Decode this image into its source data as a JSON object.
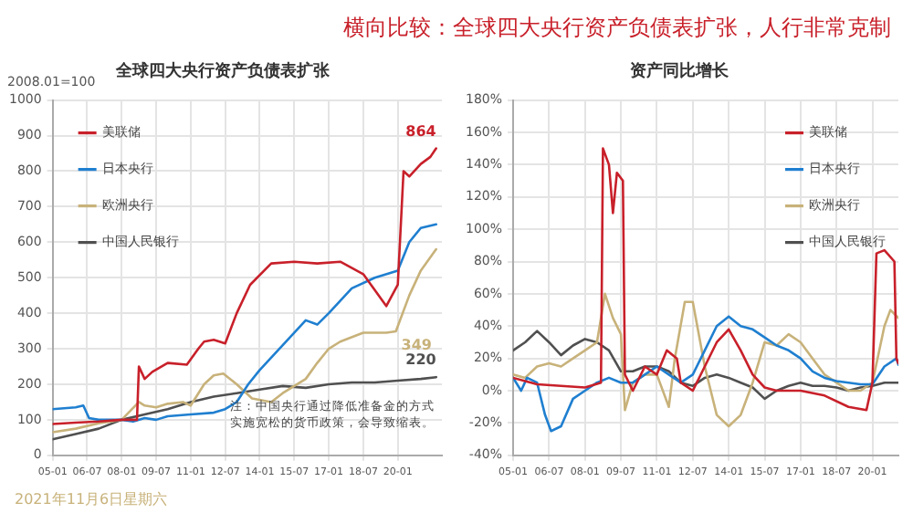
{
  "chart_data": [
    {
      "type": "line",
      "title": "全球四大央行资产负债表扩张",
      "subtitle": "横向比较：全球四大央行资产负债表扩张，人行非常克制",
      "ylabel": "2008.01=100",
      "xlim": [
        "2005-01",
        "2021-12"
      ],
      "xticks": [
        {
          "value": "2005-01",
          "label": "05-01"
        },
        {
          "value": "2006-07",
          "label": "06-07"
        },
        {
          "value": "2008-01",
          "label": "08-01"
        },
        {
          "value": "2009-07",
          "label": "09-07"
        },
        {
          "value": "2011-01",
          "label": "11-01"
        },
        {
          "value": "2012-07",
          "label": "12-07"
        },
        {
          "value": "2014-01",
          "label": "14-01"
        },
        {
          "value": "2015-07",
          "label": "15-07"
        },
        {
          "value": "2017-01",
          "label": "17-01"
        },
        {
          "value": "2018-07",
          "label": "18-07"
        },
        {
          "value": "2020-01",
          "label": "20-01"
        }
      ],
      "ylim": [
        0,
        1000
      ],
      "yticks": [
        0,
        100,
        200,
        300,
        400,
        500,
        600,
        700,
        800,
        900,
        1000
      ],
      "grid": true,
      "legend": "top left",
      "marker": "none",
      "line_style": "solid",
      "series": [
        {
          "name": "美联储",
          "color": "#c8202a",
          "x": [
            "2005-01",
            "2006-01",
            "2007-01",
            "2008-01",
            "2008-09",
            "2008-10",
            "2009-01",
            "2009-05",
            "2010-01",
            "2010-11",
            "2011-05",
            "2011-08",
            "2012-01",
            "2012-07",
            "2013-01",
            "2013-08",
            "2014-07",
            "2015-07",
            "2016-07",
            "2017-07",
            "2018-07",
            "2019-07",
            "2020-01",
            "2020-04",
            "2020-07",
            "2021-01",
            "2021-06",
            "2021-09"
          ],
          "values": [
            88,
            92,
            95,
            100,
            100,
            250,
            215,
            235,
            260,
            255,
            300,
            320,
            325,
            315,
            400,
            480,
            540,
            545,
            540,
            545,
            510,
            420,
            480,
            800,
            785,
            820,
            840,
            864
          ]
        },
        {
          "name": "日本央行",
          "color": "#1f7fd0",
          "x": [
            "2005-01",
            "2006-01",
            "2006-05",
            "2006-08",
            "2007-01",
            "2008-01",
            "2008-07",
            "2009-01",
            "2009-07",
            "2010-01",
            "2011-01",
            "2012-01",
            "2012-07",
            "2013-01",
            "2013-07",
            "2014-01",
            "2015-01",
            "2016-01",
            "2016-07",
            "2017-01",
            "2018-01",
            "2019-01",
            "2020-01",
            "2020-07",
            "2021-01",
            "2021-09"
          ],
          "values": [
            130,
            135,
            140,
            105,
            100,
            100,
            95,
            105,
            100,
            110,
            115,
            120,
            130,
            150,
            200,
            240,
            310,
            380,
            368,
            400,
            470,
            500,
            520,
            600,
            640,
            650
          ]
        },
        {
          "name": "欧洲央行",
          "color": "#c8b27a",
          "x": [
            "2005-01",
            "2006-01",
            "2007-01",
            "2008-01",
            "2008-10",
            "2009-01",
            "2009-07",
            "2010-01",
            "2010-09",
            "2011-01",
            "2011-08",
            "2012-01",
            "2012-06",
            "2013-01",
            "2013-09",
            "2014-07",
            "2015-01",
            "2016-01",
            "2016-07",
            "2017-01",
            "2017-07",
            "2018-07",
            "2019-07",
            "2019-12",
            "2020-07",
            "2021-01",
            "2021-09"
          ],
          "values": [
            65,
            75,
            90,
            100,
            150,
            140,
            135,
            145,
            150,
            140,
            200,
            225,
            230,
            200,
            160,
            150,
            175,
            215,
            260,
            300,
            320,
            345,
            345,
            349,
            450,
            520,
            580
          ]
        },
        {
          "name": "中国人民银行",
          "color": "#505050",
          "x": [
            "2005-01",
            "2006-01",
            "2007-01",
            "2008-01",
            "2009-01",
            "2010-01",
            "2011-01",
            "2012-01",
            "2013-01",
            "2014-01",
            "2015-01",
            "2016-01",
            "2017-01",
            "2018-01",
            "2019-01",
            "2020-01",
            "2021-01",
            "2021-09"
          ],
          "values": [
            45,
            60,
            75,
            100,
            115,
            130,
            150,
            165,
            175,
            185,
            195,
            190,
            200,
            205,
            205,
            210,
            215,
            220
          ]
        }
      ],
      "annotations": [
        {
          "text": "864",
          "x": "2021-09",
          "y": 864
        },
        {
          "text": "349",
          "x": "2019-12",
          "y": 349
        },
        {
          "text": "220",
          "x": "2021-09",
          "y": 220
        },
        "注：中国央行通过降低准备金的方式实施宽松的货币政策，会导致缩表。",
        "2021年11月6日星期六"
      ]
    },
    {
      "type": "line",
      "title": "资产同比增长",
      "xlim": [
        "2005-01",
        "2021-02"
      ],
      "xticks": [
        {
          "value": "2005-01",
          "label": "05-01"
        },
        {
          "value": "2006-07",
          "label": "06-07"
        },
        {
          "value": "2008-01",
          "label": "08-01"
        },
        {
          "value": "2009-07",
          "label": "09-07"
        },
        {
          "value": "2011-01",
          "label": "11-01"
        },
        {
          "value": "2012-07",
          "label": "12-07"
        },
        {
          "value": "2014-01",
          "label": "14-01"
        },
        {
          "value": "2015-07",
          "label": "15-07"
        },
        {
          "value": "2017-01",
          "label": "17-01"
        },
        {
          "value": "2018-07",
          "label": "18-07"
        },
        {
          "value": "2020-01",
          "label": "20-01"
        }
      ],
      "ylim": [
        -40,
        180
      ],
      "yticks": [
        {
          "value": -40,
          "label": "-40%"
        },
        {
          "value": -20,
          "label": "-20%"
        },
        {
          "value": 0,
          "label": "0%"
        },
        {
          "value": 20,
          "label": "20%"
        },
        {
          "value": 40,
          "label": "40%"
        },
        {
          "value": 60,
          "label": "60%"
        },
        {
          "value": 80,
          "label": "80%"
        },
        {
          "value": 100,
          "label": "100%"
        },
        {
          "value": 120,
          "label": "120%"
        },
        {
          "value": 140,
          "label": "140%"
        },
        {
          "value": 160,
          "label": "160%"
        },
        {
          "value": 180,
          "label": "180%"
        }
      ],
      "grid": true,
      "legend": "top right",
      "marker": "none",
      "line_style": "solid",
      "series": [
        {
          "name": "美联储",
          "color": "#c8202a",
          "x": [
            "2005-01",
            "2006-01",
            "2007-01",
            "2008-01",
            "2008-09",
            "2008-10",
            "2009-01",
            "2009-03",
            "2009-05",
            "2009-08",
            "2009-09",
            "2010-01",
            "2010-07",
            "2011-01",
            "2011-06",
            "2011-11",
            "2012-01",
            "2012-07",
            "2013-01",
            "2013-07",
            "2014-01",
            "2014-07",
            "2015-01",
            "2015-07",
            "2016-01",
            "2017-01",
            "2018-01",
            "2019-01",
            "2019-10",
            "2020-01",
            "2020-03",
            "2020-07",
            "2020-12",
            "2021-01",
            "2021-02"
          ],
          "values": [
            8,
            4,
            3,
            2,
            5,
            150,
            140,
            110,
            135,
            130,
            10,
            0,
            15,
            10,
            25,
            20,
            5,
            0,
            15,
            30,
            38,
            25,
            10,
            2,
            0,
            0,
            -3,
            -10,
            -12,
            5,
            85,
            87,
            80,
            20,
            17
          ]
        },
        {
          "name": "日本央行",
          "color": "#1f7fd0",
          "x": [
            "2005-01",
            "2005-05",
            "2005-08",
            "2006-01",
            "2006-05",
            "2006-08",
            "2007-01",
            "2007-07",
            "2008-01",
            "2008-07",
            "2009-01",
            "2009-07",
            "2010-01",
            "2010-07",
            "2011-01",
            "2011-07",
            "2012-01",
            "2012-07",
            "2013-01",
            "2013-07",
            "2014-01",
            "2014-07",
            "2015-01",
            "2015-07",
            "2016-01",
            "2016-07",
            "2017-01",
            "2017-07",
            "2018-01",
            "2018-07",
            "2019-01",
            "2019-07",
            "2020-01",
            "2020-07",
            "2021-01",
            "2021-02"
          ],
          "values": [
            8,
            0,
            8,
            5,
            -15,
            -25,
            -22,
            -5,
            0,
            5,
            8,
            5,
            5,
            10,
            15,
            10,
            5,
            10,
            25,
            40,
            46,
            40,
            38,
            33,
            28,
            25,
            20,
            12,
            8,
            6,
            5,
            4,
            4,
            15,
            20,
            16
          ]
        },
        {
          "name": "欧洲央行",
          "color": "#c8b27a",
          "x": [
            "2005-01",
            "2005-07",
            "2006-01",
            "2006-07",
            "2007-01",
            "2007-07",
            "2008-01",
            "2008-07",
            "2008-11",
            "2009-03",
            "2009-07",
            "2009-09",
            "2010-01",
            "2010-07",
            "2011-01",
            "2011-07",
            "2011-10",
            "2012-03",
            "2012-07",
            "2013-01",
            "2013-07",
            "2014-01",
            "2014-07",
            "2015-01",
            "2015-07",
            "2016-01",
            "2016-07",
            "2017-01",
            "2017-07",
            "2018-01",
            "2018-07",
            "2019-01",
            "2019-07",
            "2020-01",
            "2020-07",
            "2020-10",
            "2021-02"
          ],
          "values": [
            10,
            8,
            15,
            17,
            15,
            20,
            25,
            30,
            60,
            45,
            35,
            -12,
            5,
            10,
            10,
            -10,
            20,
            55,
            55,
            15,
            -15,
            -22,
            -15,
            5,
            30,
            28,
            35,
            30,
            20,
            10,
            5,
            0,
            0,
            5,
            40,
            50,
            45
          ]
        },
        {
          "name": "中国人民银行",
          "color": "#505050",
          "x": [
            "2005-01",
            "2005-07",
            "2006-01",
            "2006-07",
            "2007-01",
            "2007-07",
            "2008-01",
            "2008-07",
            "2009-01",
            "2009-07",
            "2010-01",
            "2010-07",
            "2011-01",
            "2011-07",
            "2012-01",
            "2012-07",
            "2013-01",
            "2013-07",
            "2014-01",
            "2014-07",
            "2015-01",
            "2015-07",
            "2016-01",
            "2016-07",
            "2017-01",
            "2017-07",
            "2018-01",
            "2018-07",
            "2019-01",
            "2019-07",
            "2020-01",
            "2020-07",
            "2021-01",
            "2021-02"
          ],
          "values": [
            25,
            30,
            37,
            30,
            22,
            28,
            32,
            30,
            25,
            12,
            12,
            15,
            15,
            12,
            5,
            3,
            8,
            10,
            8,
            5,
            2,
            -5,
            0,
            3,
            5,
            3,
            3,
            2,
            0,
            2,
            3,
            5,
            5,
            5
          ]
        }
      ]
    }
  ]
}
